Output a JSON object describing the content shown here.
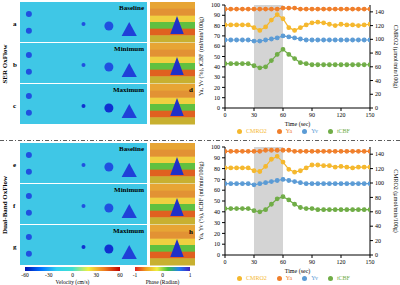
{
  "figure": {
    "rows": [
      {
        "title": "SER OxFlow",
        "image_letters": [
          "a",
          "b",
          "c"
        ],
        "chart_letter": "d"
      },
      {
        "title": "Dual-Band OxFlow",
        "image_letters": [
          "e",
          "f",
          "g"
        ],
        "chart_letter": "h"
      }
    ],
    "image_labels": [
      "Baseline",
      "Minimum",
      "Maximum"
    ],
    "colorbars": [
      {
        "label": "Velocity (cm/s)",
        "range": [
          -60,
          60
        ],
        "ticks": [
          -60,
          -30,
          0,
          30,
          60
        ]
      },
      {
        "label": "Phase (Radian)",
        "range": [
          -1,
          1
        ],
        "ticks": [
          -1,
          0,
          1
        ]
      }
    ]
  },
  "chart_data": [
    {
      "type": "line",
      "x": [
        0,
        6,
        12,
        18,
        24,
        30,
        36,
        42,
        48,
        54,
        60,
        66,
        72,
        78,
        84,
        90,
        96,
        102,
        108,
        114,
        120,
        126,
        132,
        138,
        144,
        150
      ],
      "xlim": [
        0,
        150
      ],
      "xticks": [
        0,
        30,
        60,
        90,
        120,
        150
      ],
      "ylim": [
        0,
        100
      ],
      "yticks": [
        0,
        10,
        20,
        30,
        40,
        50,
        60,
        70,
        80,
        90,
        100
      ],
      "y2lim": [
        0,
        150
      ],
      "y2ticks": [
        0,
        20,
        40,
        60,
        80,
        100,
        120,
        140
      ],
      "x_label": "Time (sec)",
      "y_label": "Ya, Yv (%), tCBF (ml/min/100g)",
      "y2_label": "CMRO2 (µmol/min/100g)",
      "stimulus": [
        30,
        60
      ],
      "grid": false,
      "legend": "bottom",
      "marker": "circle",
      "series": [
        {
          "name": "Ya",
          "color": "#f07f2b",
          "values": [
            96,
            96,
            96,
            96,
            96,
            96,
            96,
            96,
            96,
            96,
            97,
            97,
            97,
            96,
            96,
            96,
            96,
            96,
            96,
            96,
            96,
            96,
            96,
            96,
            96,
            96
          ]
        },
        {
          "name": "Yv",
          "color": "#5b9bd5",
          "values": [
            66,
            66,
            66,
            66,
            66,
            65,
            65,
            66,
            67,
            68,
            70,
            69,
            68,
            67,
            66,
            66,
            66,
            66,
            66,
            66,
            66,
            66,
            66,
            66,
            66,
            66
          ]
        },
        {
          "name": "tCBF",
          "color": "#70ad47",
          "values": [
            43,
            43,
            43,
            43,
            43,
            41,
            39,
            40,
            46,
            52,
            57,
            52,
            48,
            44,
            43,
            42,
            42,
            42,
            42,
            42,
            42,
            42,
            42,
            42,
            42,
            42
          ]
        },
        {
          "name": "CMRO2",
          "color": "#f5b82e",
          "axis": "y2",
          "values": [
            121,
            121,
            121,
            121,
            121,
            117,
            113,
            118,
            128,
            136,
            130,
            117,
            113,
            117,
            121,
            124,
            125,
            124,
            122,
            120,
            122,
            121,
            121,
            120,
            121,
            122
          ]
        }
      ]
    },
    {
      "type": "line",
      "x": [
        0,
        6,
        12,
        18,
        24,
        30,
        36,
        42,
        48,
        54,
        60,
        66,
        72,
        78,
        84,
        90,
        96,
        102,
        108,
        114,
        120,
        126,
        132,
        138,
        144,
        150
      ],
      "xlim": [
        0,
        150
      ],
      "xticks": [
        0,
        30,
        60,
        90,
        120,
        150
      ],
      "ylim": [
        0,
        100
      ],
      "yticks": [
        0,
        10,
        20,
        30,
        40,
        50,
        60,
        70,
        80,
        90,
        100
      ],
      "y2lim": [
        0,
        150
      ],
      "y2ticks": [
        0,
        20,
        40,
        60,
        80,
        100,
        120,
        140
      ],
      "x_label": "Time (sec)",
      "y_label": "Ya, Yv (%), tCBF (ml/min/100g)",
      "y2_label": "CMRO2 (µmol/min/100g)",
      "stimulus": [
        30,
        60
      ],
      "grid": false,
      "legend": "bottom",
      "marker": "circle",
      "series": [
        {
          "name": "Ya",
          "color": "#f07f2b",
          "values": [
            96,
            96,
            96,
            96,
            96,
            96,
            96,
            97,
            97,
            97,
            97,
            97,
            96,
            96,
            96,
            96,
            96,
            96,
            96,
            96,
            96,
            96,
            96,
            96,
            96,
            96
          ]
        },
        {
          "name": "Yv",
          "color": "#5b9bd5",
          "values": [
            66,
            66,
            66,
            66,
            66,
            65,
            66,
            67,
            68,
            69,
            70,
            69,
            68,
            67,
            66,
            66,
            66,
            66,
            66,
            66,
            66,
            66,
            66,
            66,
            66,
            66
          ]
        },
        {
          "name": "tCBF",
          "color": "#70ad47",
          "values": [
            43,
            43,
            43,
            43,
            43,
            41,
            40,
            42,
            47,
            52,
            54,
            51,
            47,
            44,
            43,
            43,
            42,
            42,
            42,
            42,
            42,
            42,
            42,
            42,
            42,
            42
          ]
        },
        {
          "name": "CMRO2",
          "color": "#f5b82e",
          "axis": "y2",
          "values": [
            121,
            121,
            121,
            121,
            121,
            117,
            116,
            123,
            133,
            137,
            129,
            119,
            115,
            117,
            121,
            125,
            125,
            124,
            124,
            122,
            123,
            122,
            121,
            122,
            122,
            122
          ]
        }
      ]
    }
  ]
}
